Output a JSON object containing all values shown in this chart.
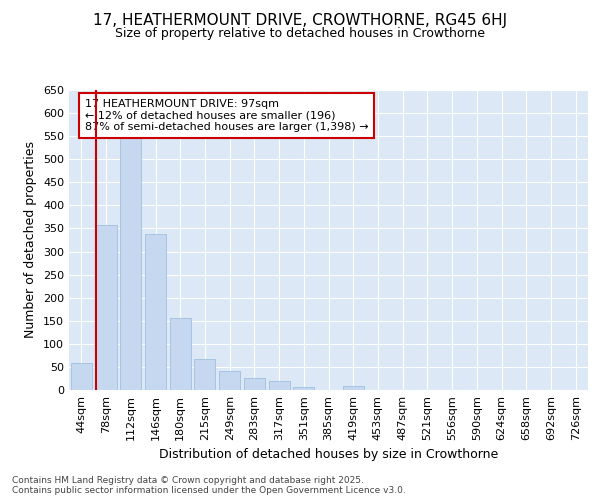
{
  "title1": "17, HEATHERMOUNT DRIVE, CROWTHORNE, RG45 6HJ",
  "title2": "Size of property relative to detached houses in Crowthorne",
  "xlabel": "Distribution of detached houses by size in Crowthorne",
  "ylabel": "Number of detached properties",
  "categories": [
    "44sqm",
    "78sqm",
    "112sqm",
    "146sqm",
    "180sqm",
    "215sqm",
    "249sqm",
    "283sqm",
    "317sqm",
    "351sqm",
    "385sqm",
    "419sqm",
    "453sqm",
    "487sqm",
    "521sqm",
    "556sqm",
    "590sqm",
    "624sqm",
    "658sqm",
    "692sqm",
    "726sqm"
  ],
  "values": [
    59,
    357,
    545,
    338,
    157,
    68,
    41,
    25,
    19,
    7,
    0,
    8,
    0,
    0,
    0,
    0,
    0,
    0,
    0,
    0,
    0
  ],
  "bar_color": "#c5d8f0",
  "bar_edge_color": "#a0c0e0",
  "vline_color": "#cc0000",
  "annotation_text": "17 HEATHERMOUNT DRIVE: 97sqm\n← 12% of detached houses are smaller (196)\n87% of semi-detached houses are larger (1,398) →",
  "annotation_box_color": "#ffffff",
  "annotation_box_edge_color": "#cc0000",
  "ylim": [
    0,
    650
  ],
  "yticks": [
    0,
    50,
    100,
    150,
    200,
    250,
    300,
    350,
    400,
    450,
    500,
    550,
    600,
    650
  ],
  "fig_bg_color": "#ffffff",
  "plot_bg_color": "#dce8f5",
  "grid_color": "#ffffff",
  "footer_text": "Contains HM Land Registry data © Crown copyright and database right 2025.\nContains public sector information licensed under the Open Government Licence v3.0.",
  "title1_fontsize": 11,
  "title2_fontsize": 9,
  "xlabel_fontsize": 9,
  "ylabel_fontsize": 9,
  "tick_fontsize": 8,
  "annotation_fontsize": 8,
  "footer_fontsize": 6.5,
  "vline_bin_index": 1
}
